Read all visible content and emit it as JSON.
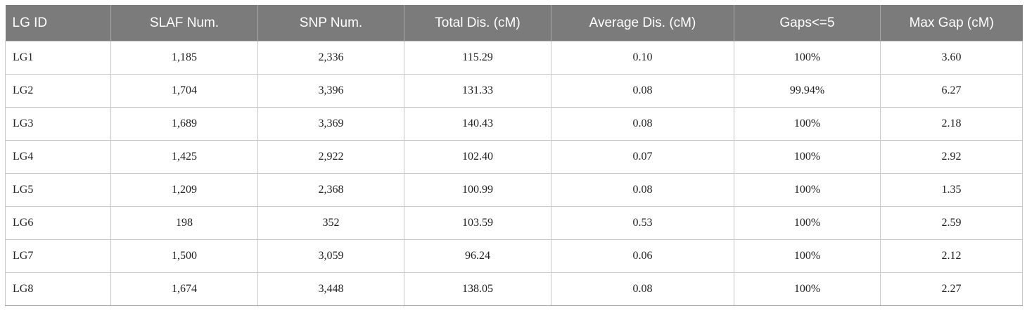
{
  "table": {
    "columns": [
      "LG ID",
      "SLAF Num.",
      "SNP Num.",
      "Total Dis. (cM)",
      "Average Dis. (cM)",
      "Gaps<=5",
      "Max Gap (cM)"
    ],
    "rows": [
      [
        "LG1",
        "1,185",
        "2,336",
        "115.29",
        "0.10",
        "100%",
        "3.60"
      ],
      [
        "LG2",
        "1,704",
        "3,396",
        "131.33",
        "0.08",
        "99.94%",
        "6.27"
      ],
      [
        "LG3",
        "1,689",
        "3,369",
        "140.43",
        "0.08",
        "100%",
        "2.18"
      ],
      [
        "LG4",
        "1,425",
        "2,922",
        "102.40",
        "0.07",
        "100%",
        "2.92"
      ],
      [
        "LG5",
        "1,209",
        "2,368",
        "100.99",
        "0.08",
        "100%",
        "1.35"
      ],
      [
        "LG6",
        "198",
        "352",
        "103.59",
        "0.53",
        "100%",
        "2.59"
      ],
      [
        "LG7",
        "1,500",
        "3,059",
        "96.24",
        "0.06",
        "100%",
        "2.12"
      ],
      [
        "LG8",
        "1,674",
        "3,448",
        "138.05",
        "0.08",
        "100%",
        "2.27"
      ]
    ]
  },
  "colors": {
    "header_bg": "#7b7b7b",
    "header_text": "#ffffff",
    "grid": "#c8c8c8",
    "cell_text": "#222222"
  }
}
